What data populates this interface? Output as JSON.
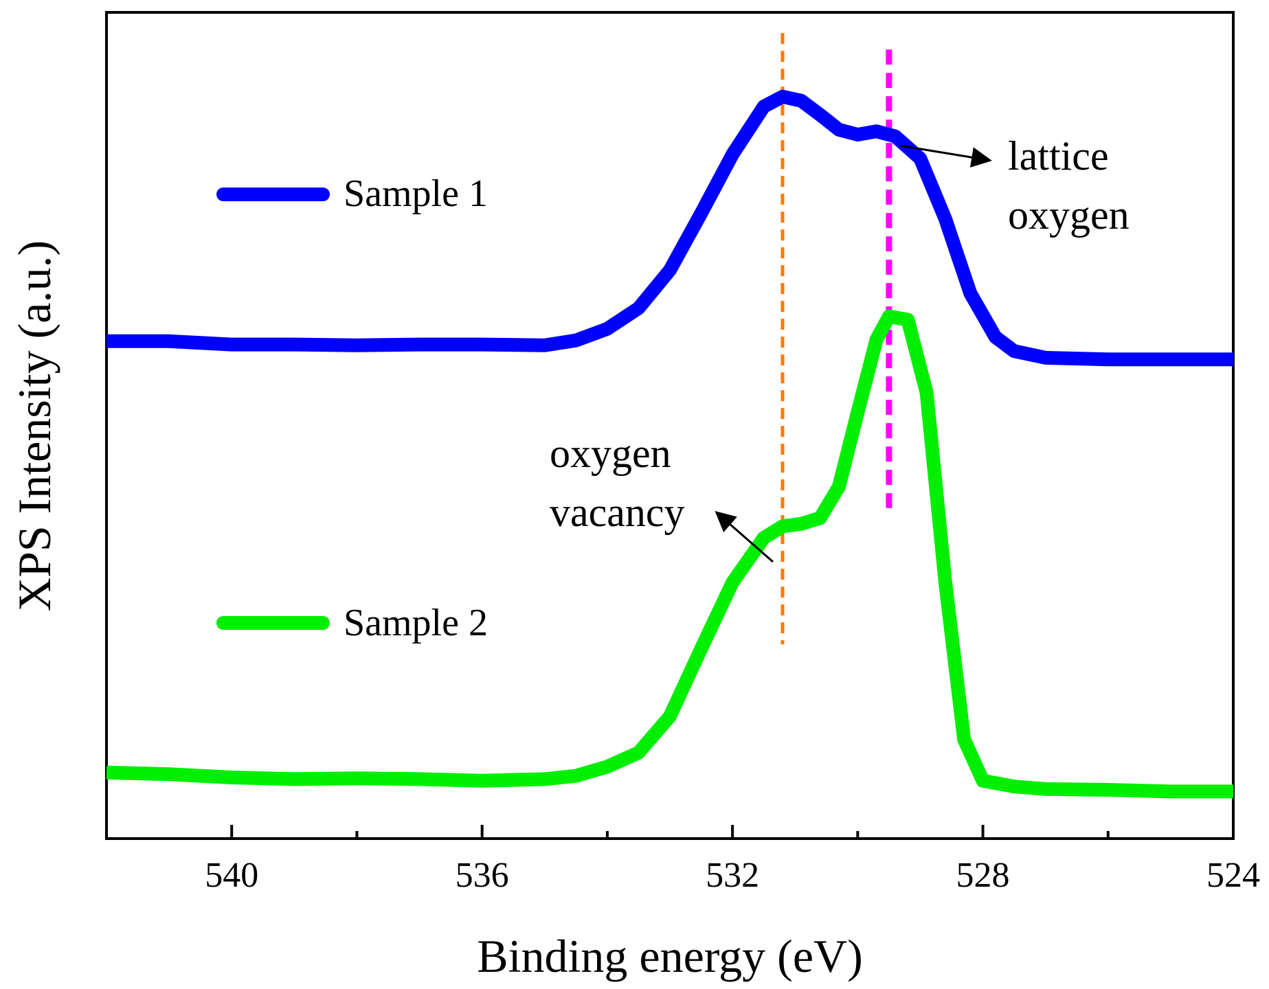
{
  "chart_data": {
    "type": "line",
    "title": "",
    "xlabel": "Binding energy (eV)",
    "ylabel": "XPS Intensity (a.u.)",
    "xlim": [
      542,
      524
    ],
    "ylim": [
      0,
      1
    ],
    "xticks_major": [
      540,
      536,
      532,
      528,
      524
    ],
    "xticks_minor": [
      538,
      534,
      530,
      526
    ],
    "xtick_labels": [
      "540",
      "536",
      "532",
      "528",
      "524"
    ],
    "yticks": [],
    "grid": false,
    "legend_position": "left",
    "series": [
      {
        "name": "Sample 1",
        "color": "#0000ff",
        "points": [
          [
            542,
            0.602
          ],
          [
            541,
            0.602
          ],
          [
            540,
            0.598
          ],
          [
            539,
            0.598
          ],
          [
            538,
            0.597
          ],
          [
            537,
            0.598
          ],
          [
            536,
            0.598
          ],
          [
            535,
            0.597
          ],
          [
            534.5,
            0.603
          ],
          [
            534,
            0.617
          ],
          [
            533.5,
            0.642
          ],
          [
            533,
            0.688
          ],
          [
            532.5,
            0.757
          ],
          [
            532,
            0.828
          ],
          [
            531.5,
            0.886
          ],
          [
            531.2,
            0.898
          ],
          [
            530.9,
            0.893
          ],
          [
            530.6,
            0.876
          ],
          [
            530.3,
            0.858
          ],
          [
            530.0,
            0.852
          ],
          [
            529.7,
            0.856
          ],
          [
            529.4,
            0.85
          ],
          [
            529.0,
            0.823
          ],
          [
            528.6,
            0.75
          ],
          [
            528.2,
            0.66
          ],
          [
            527.8,
            0.607
          ],
          [
            527.5,
            0.59
          ],
          [
            527,
            0.582
          ],
          [
            526,
            0.58
          ],
          [
            525,
            0.58
          ],
          [
            524,
            0.58
          ]
        ]
      },
      {
        "name": "Sample 2",
        "color": "#00ee00",
        "points": [
          [
            542,
            0.08
          ],
          [
            541,
            0.078
          ],
          [
            540,
            0.074
          ],
          [
            539,
            0.072
          ],
          [
            538,
            0.073
          ],
          [
            537,
            0.072
          ],
          [
            536,
            0.07
          ],
          [
            535,
            0.072
          ],
          [
            534.5,
            0.076
          ],
          [
            534,
            0.087
          ],
          [
            533.5,
            0.104
          ],
          [
            533,
            0.148
          ],
          [
            532.5,
            0.23
          ],
          [
            532,
            0.31
          ],
          [
            531.5,
            0.364
          ],
          [
            531.2,
            0.378
          ],
          [
            530.9,
            0.381
          ],
          [
            530.6,
            0.388
          ],
          [
            530.3,
            0.426
          ],
          [
            530.0,
            0.516
          ],
          [
            529.7,
            0.604
          ],
          [
            529.5,
            0.632
          ],
          [
            529.2,
            0.628
          ],
          [
            528.9,
            0.54
          ],
          [
            528.6,
            0.31
          ],
          [
            528.3,
            0.12
          ],
          [
            528.0,
            0.07
          ],
          [
            527.5,
            0.063
          ],
          [
            527,
            0.06
          ],
          [
            526,
            0.059
          ],
          [
            525,
            0.057
          ],
          [
            524,
            0.057
          ]
        ]
      }
    ],
    "reference_lines": [
      {
        "name": "oxygen vacancy position",
        "x": 531.2,
        "y_range": [
          0.235,
          0.975
        ],
        "color": "#ff7a00"
      },
      {
        "name": "lattice oxygen position",
        "x": 529.5,
        "y_range": [
          0.4,
          0.955
        ],
        "color": "#ff00ff"
      }
    ],
    "annotations": [
      {
        "lines": [
          "lattice",
          "oxygen"
        ],
        "points_to": [
          529.4,
          0.85
        ]
      },
      {
        "lines": [
          "oxygen",
          "vacancy"
        ],
        "points_to": [
          531.2,
          0.378
        ]
      }
    ]
  }
}
